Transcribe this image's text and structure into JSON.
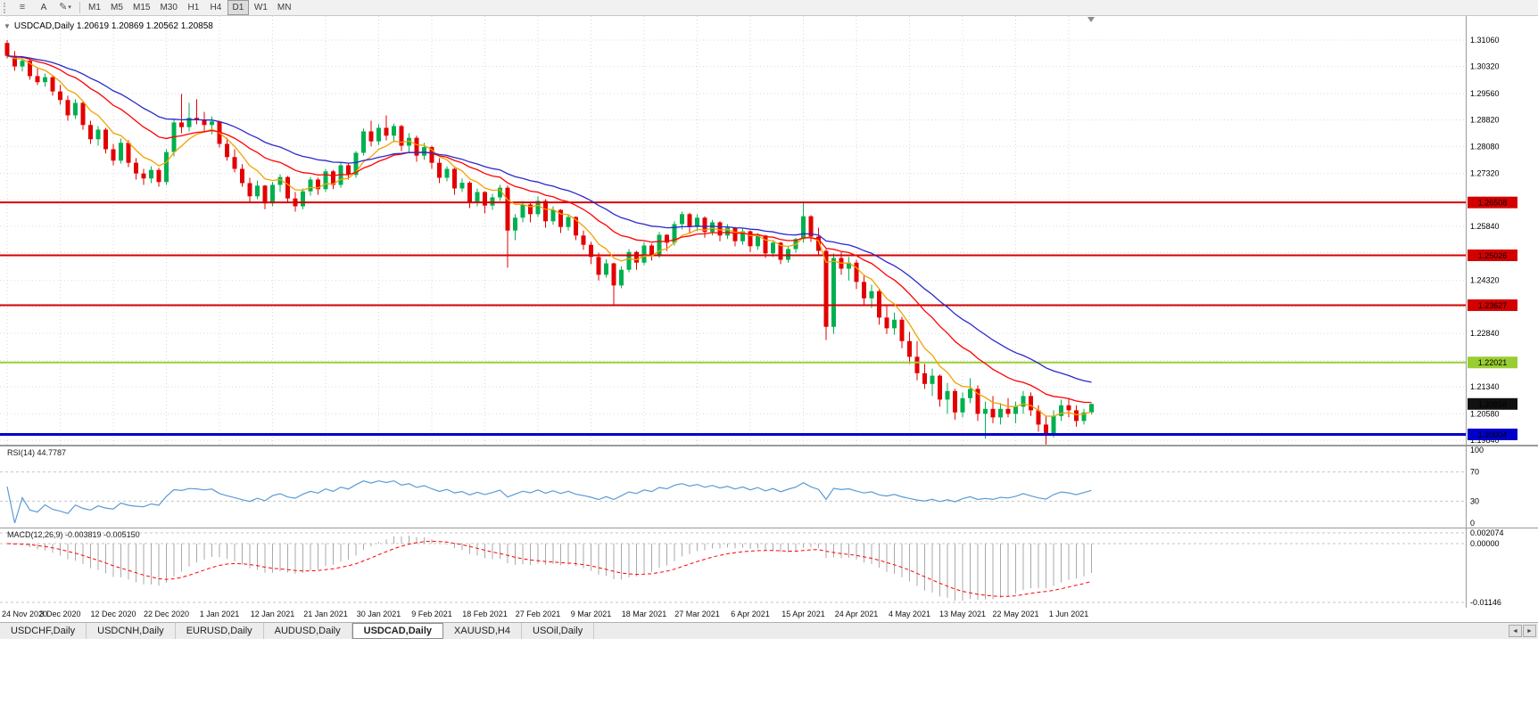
{
  "toolbar": {
    "a_label": "A",
    "pencil_icon": "✎",
    "menu_icon": "≡",
    "caret": "▾",
    "timeframes": [
      {
        "label": "M1",
        "active": false
      },
      {
        "label": "M5",
        "active": false
      },
      {
        "label": "M15",
        "active": false
      },
      {
        "label": "M30",
        "active": false
      },
      {
        "label": "H1",
        "active": false
      },
      {
        "label": "H4",
        "active": false
      },
      {
        "label": "D1",
        "active": true
      },
      {
        "label": "W1",
        "active": false
      },
      {
        "label": "MN",
        "active": false
      }
    ]
  },
  "chart": {
    "dropdown_glyph": "▼",
    "header_text": "USDCAD,Daily  1.20619 1.20869 1.20562 1.20858"
  },
  "rsi": {
    "label": "RSI(14) 44.7787"
  },
  "macd": {
    "label": "MACD(12,26,9) -0.003819 -0.005150"
  },
  "tabs": {
    "scroll_left": "◄",
    "scroll_right": "►",
    "items": [
      {
        "label": "USDCHF,Daily",
        "active": false
      },
      {
        "label": "USDCNH,Daily",
        "active": false
      },
      {
        "label": "EURUSD,Daily",
        "active": false
      },
      {
        "label": "AUDUSD,Daily",
        "active": false
      },
      {
        "label": "USDCAD,Daily",
        "active": true
      },
      {
        "label": "XAUUSD,H4",
        "active": false
      },
      {
        "label": "USOil,Daily",
        "active": false
      }
    ]
  },
  "chart_data": {
    "type": "candlestick",
    "symbol": "USDCAD",
    "timeframe": "Daily",
    "ohlc_legend": {
      "open": 1.20619,
      "high": 1.20869,
      "low": 1.20562,
      "close": 1.20858
    },
    "bars_per_label": 7,
    "date_labels": [
      "24 Nov 2020",
      "3 Dec 2020",
      "12 Dec 2020",
      "22 Dec 2020",
      "1 Jan 2021",
      "12 Jan 2021",
      "21 Jan 2021",
      "30 Jan 2021",
      "9 Feb 2021",
      "18 Feb 2021",
      "27 Feb 2021",
      "9 Mar 2021",
      "18 Mar 2021",
      "27 Mar 2021",
      "6 Apr 2021",
      "15 Apr 2021",
      "24 Apr 2021",
      "4 May 2021",
      "13 May 2021",
      "22 May 2021",
      "1 Jun 2021"
    ],
    "y_axis_ticks": [
      "1.31060",
      "1.30320",
      "1.29560",
      "1.28820",
      "1.28080",
      "1.27320",
      "1.26580",
      "1.25840",
      "1.25100",
      "1.24320",
      "1.23580",
      "1.22840",
      "1.22080",
      "1.21340",
      "1.20580",
      "1.19840"
    ],
    "horizontal_levels": [
      {
        "price": 1.26508,
        "label": "1.26508",
        "color": "#d40000",
        "width": 2
      },
      {
        "price": 1.25026,
        "label": "1.25026",
        "color": "#d40000",
        "width": 2
      },
      {
        "price": 1.23627,
        "label": "1.23627",
        "color": "#d40000",
        "width": 2
      },
      {
        "price": 1.22021,
        "label": "1.22021",
        "color": "#9acd32",
        "width": 2
      },
      {
        "price": 1.20004,
        "label": "1.20004",
        "color": "#0000c8",
        "width": 3
      }
    ],
    "current_price": {
      "value": 1.20858,
      "label": "1.20858",
      "badge_color": "#111111"
    },
    "moving_averages": [
      {
        "name": "ma-fast",
        "type": "ema",
        "period": 7,
        "color": "#f2a200"
      },
      {
        "name": "ma-mid",
        "type": "ema",
        "period": 18,
        "color": "#ff0000"
      },
      {
        "name": "ma-slow",
        "type": "ema",
        "period": 30,
        "color": "#2929cc"
      }
    ],
    "rsi": {
      "period": 14,
      "value": 44.7787,
      "dashed_levels": [
        70,
        30
      ],
      "ticks": [
        "100",
        "70",
        "30",
        "0"
      ]
    },
    "macd": {
      "fast": 12,
      "slow": 26,
      "signal_period": 9,
      "value": -0.003819,
      "signal_value": -0.00515,
      "ticks": [
        "0.002074",
        "0.00000",
        "-0.01146"
      ]
    },
    "colors": {
      "up": "#00b050",
      "down": "#e30000",
      "grid": "#d9d9d9",
      "separator": "#9b9b9b",
      "rsi_line": "#5b9bd5",
      "rsi_level": "#c4c4c4",
      "macd_hist": "#a9a9a9",
      "macd_signal": "#ff0000",
      "shift_marker": "#8c8c8c"
    },
    "ohlc": [
      [
        1.3098,
        1.3106,
        1.3055,
        1.3062
      ],
      [
        1.3062,
        1.3075,
        1.302,
        1.3032
      ],
      [
        1.3032,
        1.3058,
        1.3018,
        1.3048
      ],
      [
        1.3048,
        1.3052,
        1.2995,
        1.3005
      ],
      [
        1.3005,
        1.303,
        1.298,
        1.2988
      ],
      [
        1.2988,
        1.3012,
        1.2975,
        1.3002
      ],
      [
        1.3002,
        1.3008,
        1.295,
        1.2962
      ],
      [
        1.2962,
        1.298,
        1.2925,
        1.2938
      ],
      [
        1.2938,
        1.295,
        1.288,
        1.2895
      ],
      [
        1.2895,
        1.294,
        1.2885,
        1.293
      ],
      [
        1.293,
        1.2935,
        1.2855,
        1.2868
      ],
      [
        1.2868,
        1.288,
        1.2815,
        1.2828
      ],
      [
        1.2828,
        1.2865,
        1.281,
        1.2855
      ],
      [
        1.2855,
        1.286,
        1.2788,
        1.28
      ],
      [
        1.28,
        1.2815,
        1.2755,
        1.2768
      ],
      [
        1.2768,
        1.283,
        1.276,
        1.2818
      ],
      [
        1.2818,
        1.2825,
        1.275,
        1.2762
      ],
      [
        1.2762,
        1.2775,
        1.2715,
        1.2732
      ],
      [
        1.2732,
        1.2745,
        1.27,
        1.2718
      ],
      [
        1.2718,
        1.2752,
        1.2705,
        1.2742
      ],
      [
        1.2742,
        1.2748,
        1.2695,
        1.2708
      ],
      [
        1.2708,
        1.28,
        1.27,
        1.2792
      ],
      [
        1.2792,
        1.2885,
        1.278,
        1.2875
      ],
      [
        1.2875,
        1.2955,
        1.2845,
        1.2862
      ],
      [
        1.2862,
        1.293,
        1.285,
        1.2888
      ],
      [
        1.2888,
        1.294,
        1.287,
        1.2882
      ],
      [
        1.2882,
        1.2905,
        1.2848,
        1.2868
      ],
      [
        1.2868,
        1.2892,
        1.2842,
        1.2878
      ],
      [
        1.2878,
        1.288,
        1.2805,
        1.2815
      ],
      [
        1.2815,
        1.2832,
        1.2768,
        1.2778
      ],
      [
        1.2778,
        1.28,
        1.2735,
        1.2745
      ],
      [
        1.2745,
        1.2758,
        1.2695,
        1.2705
      ],
      [
        1.2705,
        1.272,
        1.2652,
        1.2668
      ],
      [
        1.2668,
        1.2712,
        1.266,
        1.2698
      ],
      [
        1.2698,
        1.27,
        1.2632,
        1.2648
      ],
      [
        1.2648,
        1.2708,
        1.264,
        1.27
      ],
      [
        1.27,
        1.273,
        1.268,
        1.2722
      ],
      [
        1.2722,
        1.2725,
        1.265,
        1.2662
      ],
      [
        1.2662,
        1.268,
        1.2625,
        1.264
      ],
      [
        1.264,
        1.269,
        1.2632,
        1.2682
      ],
      [
        1.2682,
        1.2722,
        1.267,
        1.2715
      ],
      [
        1.2715,
        1.272,
        1.2672,
        1.2688
      ],
      [
        1.2688,
        1.2745,
        1.268,
        1.2738
      ],
      [
        1.2738,
        1.2742,
        1.2688,
        1.27
      ],
      [
        1.27,
        1.2762,
        1.2692,
        1.2755
      ],
      [
        1.2755,
        1.276,
        1.2715,
        1.2728
      ],
      [
        1.2728,
        1.2795,
        1.272,
        1.279
      ],
      [
        1.279,
        1.2858,
        1.2782,
        1.285
      ],
      [
        1.285,
        1.288,
        1.2808,
        1.2822
      ],
      [
        1.2822,
        1.287,
        1.2812,
        1.286
      ],
      [
        1.286,
        1.2895,
        1.2825,
        1.2838
      ],
      [
        1.2838,
        1.2872,
        1.282,
        1.2865
      ],
      [
        1.2865,
        1.2868,
        1.2795,
        1.281
      ],
      [
        1.281,
        1.2845,
        1.2792,
        1.2832
      ],
      [
        1.2832,
        1.2838,
        1.2765,
        1.2782
      ],
      [
        1.2782,
        1.2818,
        1.277,
        1.2806
      ],
      [
        1.2806,
        1.281,
        1.2745,
        1.2762
      ],
      [
        1.2762,
        1.2775,
        1.2705,
        1.272
      ],
      [
        1.272,
        1.2752,
        1.271,
        1.2745
      ],
      [
        1.2745,
        1.2748,
        1.2672,
        1.269
      ],
      [
        1.269,
        1.2718,
        1.268,
        1.2706
      ],
      [
        1.2706,
        1.271,
        1.2635,
        1.265
      ],
      [
        1.265,
        1.269,
        1.264,
        1.268
      ],
      [
        1.268,
        1.2682,
        1.262,
        1.2642
      ],
      [
        1.2642,
        1.2675,
        1.263,
        1.2665
      ],
      [
        1.2665,
        1.27,
        1.2655,
        1.2692
      ],
      [
        1.2692,
        1.2698,
        1.2468,
        1.2572
      ],
      [
        1.2572,
        1.2618,
        1.2545,
        1.2608
      ],
      [
        1.2608,
        1.2655,
        1.2595,
        1.2645
      ],
      [
        1.2645,
        1.265,
        1.2595,
        1.2618
      ],
      [
        1.2618,
        1.2668,
        1.261,
        1.2655
      ],
      [
        1.2655,
        1.266,
        1.258,
        1.2598
      ],
      [
        1.2598,
        1.264,
        1.2588,
        1.263
      ],
      [
        1.263,
        1.2632,
        1.2565,
        1.2582
      ],
      [
        1.2582,
        1.2618,
        1.2572,
        1.261
      ],
      [
        1.261,
        1.2612,
        1.2545,
        1.2558
      ],
      [
        1.2558,
        1.2572,
        1.2518,
        1.2532
      ],
      [
        1.2532,
        1.254,
        1.2478,
        1.2498
      ],
      [
        1.2498,
        1.251,
        1.2432,
        1.2448
      ],
      [
        1.2448,
        1.2492,
        1.244,
        1.248
      ],
      [
        1.248,
        1.2482,
        1.2365,
        1.2418
      ],
      [
        1.2418,
        1.2472,
        1.241,
        1.2462
      ],
      [
        1.2462,
        1.252,
        1.2455,
        1.2512
      ],
      [
        1.2512,
        1.2515,
        1.2462,
        1.2482
      ],
      [
        1.2482,
        1.254,
        1.2475,
        1.253
      ],
      [
        1.253,
        1.2535,
        1.2488,
        1.2502
      ],
      [
        1.2502,
        1.2568,
        1.2495,
        1.256
      ],
      [
        1.256,
        1.2562,
        1.2515,
        1.2538
      ],
      [
        1.2538,
        1.2598,
        1.253,
        1.259
      ],
      [
        1.259,
        1.2625,
        1.2575,
        1.2618
      ],
      [
        1.2618,
        1.2622,
        1.2565,
        1.2582
      ],
      [
        1.2582,
        1.2618,
        1.257,
        1.2608
      ],
      [
        1.2608,
        1.2612,
        1.2552,
        1.2568
      ],
      [
        1.2568,
        1.2602,
        1.2558,
        1.2595
      ],
      [
        1.2595,
        1.2598,
        1.2542,
        1.2558
      ],
      [
        1.2558,
        1.259,
        1.2548,
        1.258
      ],
      [
        1.258,
        1.2582,
        1.2528,
        1.2542
      ],
      [
        1.2542,
        1.2578,
        1.2532,
        1.257
      ],
      [
        1.257,
        1.2572,
        1.2512,
        1.2528
      ],
      [
        1.2528,
        1.2565,
        1.2518,
        1.2558
      ],
      [
        1.2558,
        1.256,
        1.2495,
        1.2508
      ],
      [
        1.2508,
        1.2545,
        1.2498,
        1.2538
      ],
      [
        1.2538,
        1.254,
        1.2478,
        1.249
      ],
      [
        1.249,
        1.2528,
        1.2482,
        1.252
      ],
      [
        1.252,
        1.2552,
        1.251,
        1.2548
      ],
      [
        1.2548,
        1.2654,
        1.2538,
        1.2612
      ],
      [
        1.2612,
        1.2615,
        1.254,
        1.2555
      ],
      [
        1.2555,
        1.258,
        1.25,
        1.2515
      ],
      [
        1.2515,
        1.252,
        1.2265,
        1.2302
      ],
      [
        1.2302,
        1.2508,
        1.2282,
        1.2495
      ],
      [
        1.2495,
        1.2512,
        1.2448,
        1.2465
      ],
      [
        1.2465,
        1.2498,
        1.2432,
        1.2482
      ],
      [
        1.2482,
        1.249,
        1.2408,
        1.2428
      ],
      [
        1.2428,
        1.2448,
        1.2362,
        1.2382
      ],
      [
        1.2382,
        1.242,
        1.2355,
        1.2402
      ],
      [
        1.2402,
        1.2408,
        1.2308,
        1.2328
      ],
      [
        1.2328,
        1.236,
        1.2282,
        1.2298
      ],
      [
        1.2298,
        1.2342,
        1.228,
        1.2322
      ],
      [
        1.2322,
        1.233,
        1.2242,
        1.2262
      ],
      [
        1.2262,
        1.2288,
        1.2198,
        1.2218
      ],
      [
        1.2218,
        1.2262,
        1.2152,
        1.2172
      ],
      [
        1.2172,
        1.2198,
        1.2128,
        1.2142
      ],
      [
        1.2142,
        1.2185,
        1.2108,
        1.2165
      ],
      [
        1.2165,
        1.2168,
        1.2078,
        1.2098
      ],
      [
        1.2098,
        1.2145,
        1.2058,
        1.2122
      ],
      [
        1.2122,
        1.2128,
        1.2042,
        1.2062
      ],
      [
        1.2062,
        1.2118,
        1.2048,
        1.2102
      ],
      [
        1.2102,
        1.2158,
        1.2088,
        1.2128
      ],
      [
        1.2128,
        1.2138,
        1.2038,
        1.2058
      ],
      [
        1.2058,
        1.2092,
        1.1988,
        1.2072
      ],
      [
        1.2072,
        1.2108,
        1.2032,
        1.2048
      ],
      [
        1.2048,
        1.2088,
        1.2028,
        1.2072
      ],
      [
        1.2072,
        1.2102,
        1.2048,
        1.2058
      ],
      [
        1.2058,
        1.2092,
        1.2032,
        1.2078
      ],
      [
        1.2078,
        1.2122,
        1.2058,
        1.2108
      ],
      [
        1.2108,
        1.2118,
        1.2052,
        1.2068
      ],
      [
        1.2068,
        1.2082,
        1.2008,
        1.2028
      ],
      [
        1.2028,
        1.2052,
        1.1972,
        1.2002
      ],
      [
        1.2002,
        1.2068,
        1.1992,
        1.2052
      ],
      [
        1.2052,
        1.2098,
        1.2038,
        1.2082
      ],
      [
        1.2082,
        1.2102,
        1.2048,
        1.2068
      ],
      [
        1.2068,
        1.2082,
        1.2022,
        1.2038
      ],
      [
        1.2038,
        1.2072,
        1.2028,
        1.2062
      ],
      [
        1.20619,
        1.20869,
        1.20562,
        1.20858
      ]
    ]
  }
}
